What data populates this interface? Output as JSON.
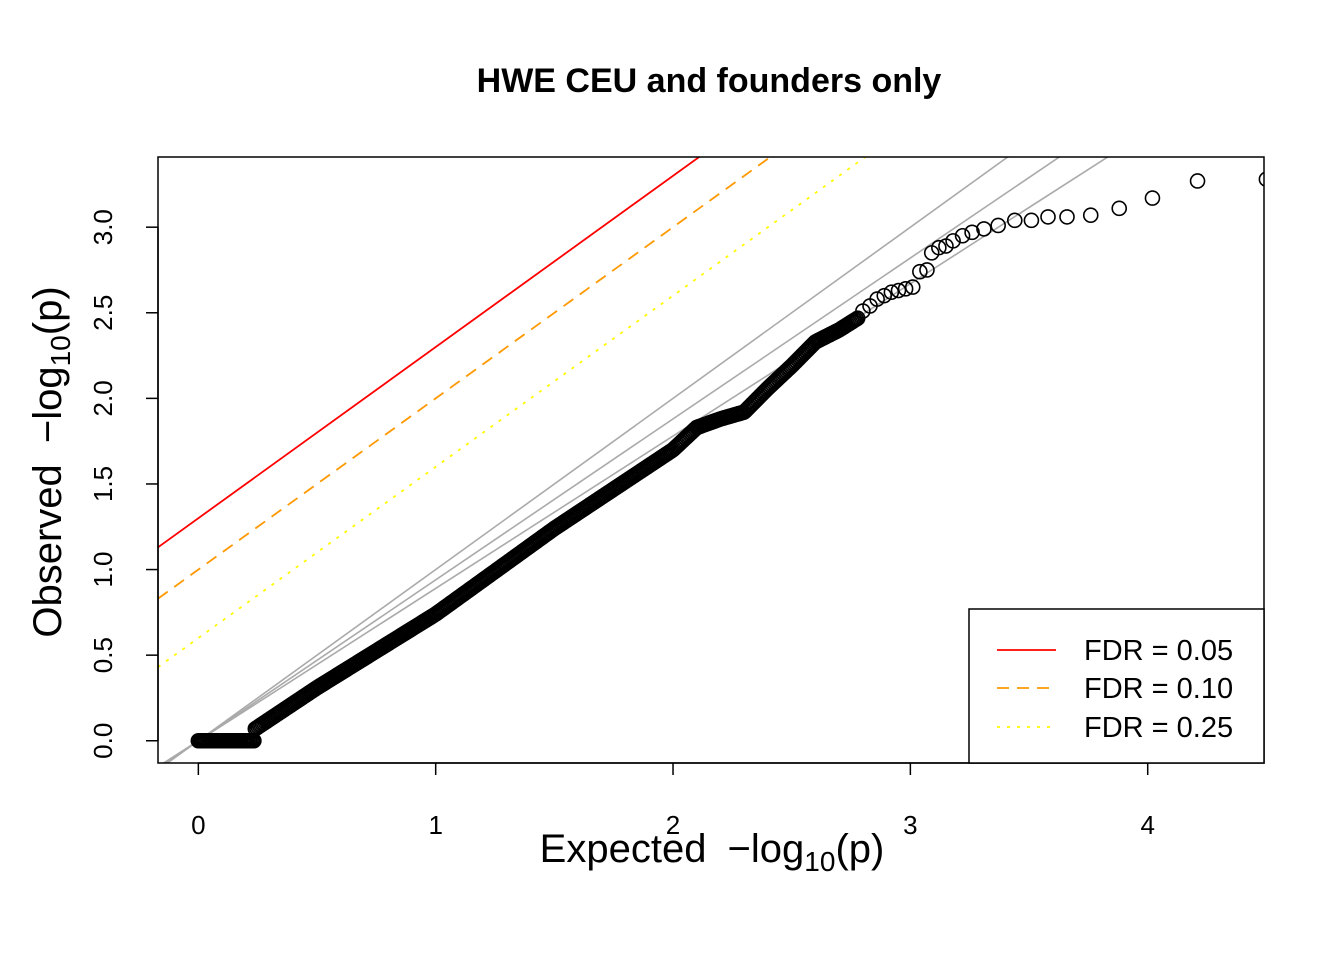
{
  "chart_data": {
    "type": "scatter",
    "title": "HWE CEU and founders only",
    "xlabel": {
      "pre": "Expected ",
      "minus": "−",
      "log": "log",
      "sub": "10",
      "arg": "(p)"
    },
    "ylabel": {
      "pre": "Observed ",
      "minus": "−",
      "log": "log",
      "sub": "10",
      "arg": "(p)"
    },
    "xlim": [
      -0.17,
      4.49
    ],
    "ylim": [
      -0.13,
      3.41
    ],
    "x_ticks": [
      "0",
      "1",
      "2",
      "3",
      "4"
    ],
    "y_ticks": [
      "0.0",
      "0.5",
      "1.0",
      "1.5",
      "2.0",
      "2.5",
      "3.0"
    ],
    "grid": false,
    "colors": {
      "fdr05": "#ff0000",
      "fdr10": "#ff9900",
      "fdr25": "#ffff00",
      "null_line": "#aaaaaa",
      "points": "#000000"
    },
    "fdr_lines": [
      {
        "label": "FDR = 0.05",
        "intercept": 1.3,
        "slope": 1.0,
        "style": "solid"
      },
      {
        "label": "FDR = 0.10",
        "intercept": 1.0,
        "slope": 1.0,
        "style": "dashed"
      },
      {
        "label": "FDR = 0.25",
        "intercept": 0.6,
        "slope": 1.0,
        "style": "dotted"
      }
    ],
    "null_lines": [
      {
        "slope": 1.0,
        "intercept": 0.0
      },
      {
        "slope": 0.94,
        "intercept": 0.0
      },
      {
        "slope": 0.89,
        "intercept": 0.0
      }
    ],
    "legend_position": "bottom-right",
    "tail_points": [
      [
        2.8,
        2.51
      ],
      [
        2.83,
        2.54
      ],
      [
        2.86,
        2.58
      ],
      [
        2.89,
        2.6
      ],
      [
        2.92,
        2.62
      ],
      [
        2.95,
        2.63
      ],
      [
        2.98,
        2.64
      ],
      [
        3.01,
        2.65
      ],
      [
        3.04,
        2.74
      ],
      [
        3.07,
        2.75
      ],
      [
        3.09,
        2.85
      ],
      [
        3.12,
        2.88
      ],
      [
        3.15,
        2.89
      ],
      [
        3.18,
        2.92
      ],
      [
        3.22,
        2.95
      ],
      [
        3.26,
        2.97
      ],
      [
        3.31,
        2.99
      ],
      [
        3.37,
        3.01
      ],
      [
        3.44,
        3.04
      ],
      [
        3.51,
        3.04
      ],
      [
        3.58,
        3.06
      ],
      [
        3.66,
        3.06
      ],
      [
        3.76,
        3.07
      ],
      [
        3.88,
        3.11
      ],
      [
        4.02,
        3.17
      ],
      [
        4.21,
        3.27
      ],
      [
        4.5,
        3.28
      ]
    ]
  }
}
